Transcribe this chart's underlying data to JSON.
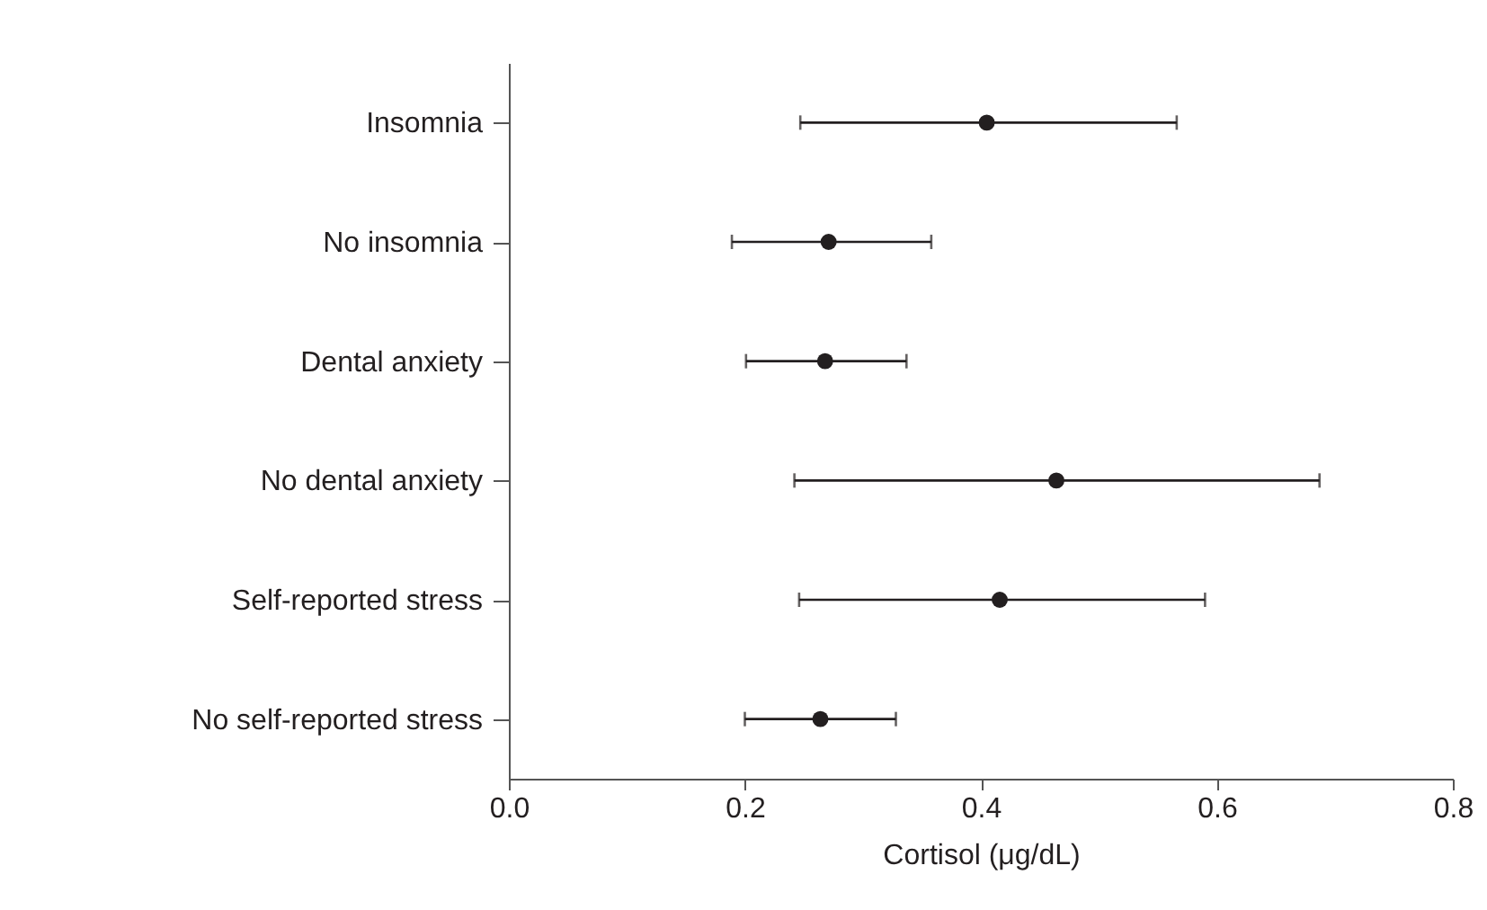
{
  "chart_data": {
    "type": "scatter",
    "orientation": "horizontal",
    "xlabel": "Cortisol (μg/dL)",
    "categories": [
      "Insomnia",
      "No insomnia",
      "Dental anxiety",
      "No dental anxiety",
      "Self-reported stress",
      "No self-reported stress"
    ],
    "values": [
      0.405,
      0.271,
      0.268,
      0.464,
      0.416,
      0.264
    ],
    "errors": [
      [
        0.247,
        0.566
      ],
      [
        0.189,
        0.358
      ],
      [
        0.201,
        0.337
      ],
      [
        0.242,
        0.687
      ],
      [
        0.246,
        0.59
      ],
      [
        0.2,
        0.328
      ]
    ],
    "color": "#231f20",
    "marker": "circle",
    "xlim": [
      0,
      0.8
    ],
    "xticks": [
      {
        "value": 0,
        "label": "0.0"
      },
      0.2,
      0.4,
      0.6,
      0.8
    ],
    "grid": false
  }
}
